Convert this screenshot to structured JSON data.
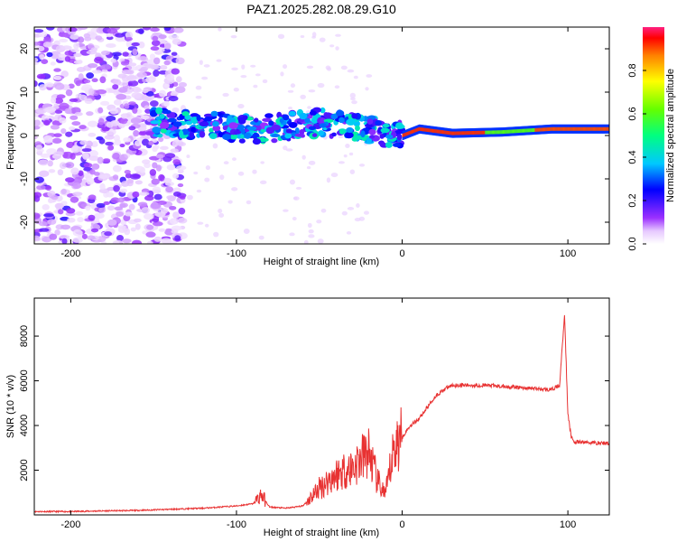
{
  "title": "PAZ1.2025.282.08.29.G10",
  "chart_data": [
    {
      "type": "heatmap",
      "xlabel": "Height of straight line (km)",
      "ylabel": "Frequency (Hz)",
      "xlim": [
        -222,
        125
      ],
      "ylim": [
        -25,
        25
      ],
      "xticks": [
        -200,
        -100,
        0,
        100
      ],
      "xtick_labels": [
        "-200",
        "-100",
        "0",
        "100"
      ],
      "yticks": [
        -20,
        -10,
        0,
        10,
        20
      ],
      "ytick_labels": [
        "-20",
        "-10",
        "0",
        "10",
        "20"
      ],
      "colorbar": {
        "label": "Normalized spectral amplitude",
        "range": [
          0,
          1
        ],
        "ticks": [
          0,
          0.2,
          0.4,
          0.6,
          0.8
        ],
        "tick_labels": [
          "0.0",
          "0.2",
          "0.4",
          "0.6",
          "0.8"
        ]
      },
      "ridge": [
        {
          "x": -150,
          "f": 3
        },
        {
          "x": -130,
          "f": 2.5
        },
        {
          "x": -110,
          "f": 2
        },
        {
          "x": -90,
          "f": 1.5
        },
        {
          "x": -70,
          "f": 2
        },
        {
          "x": -50,
          "f": 3
        },
        {
          "x": -30,
          "f": 2
        },
        {
          "x": -10,
          "f": 0.5
        },
        {
          "x": 0,
          "f": 0
        },
        {
          "x": 10,
          "f": 1.5
        },
        {
          "x": 30,
          "f": 0.5
        },
        {
          "x": 60,
          "f": 0.8
        },
        {
          "x": 90,
          "f": 1.5
        },
        {
          "x": 125,
          "f": 1.5
        }
      ]
    },
    {
      "type": "line",
      "xlabel": "Height of straight line (km)",
      "ylabel": "SNR (10 * v/v)",
      "xlim": [
        -222,
        125
      ],
      "ylim": [
        0,
        9700
      ],
      "xticks": [
        -200,
        -100,
        0,
        100
      ],
      "xtick_labels": [
        "-200",
        "-100",
        "0",
        "100"
      ],
      "yticks": [
        2000,
        4000,
        6000,
        8000
      ],
      "ytick_labels": [
        "2000",
        "4000",
        "6000",
        "8000"
      ],
      "color": "#e83232",
      "series": [
        {
          "x": [
            -222,
            -200,
            -180,
            -160,
            -140,
            -120,
            -110,
            -100,
            -90,
            -85,
            -80,
            -70,
            -60,
            -55,
            -50,
            -45,
            -40,
            -35,
            -30,
            -25,
            -20,
            -15,
            -10,
            -5,
            0,
            5,
            10,
            15,
            20,
            25,
            30,
            40,
            50,
            60,
            70,
            80,
            90,
            95,
            98,
            100,
            102,
            104,
            110,
            125
          ],
          "y": [
            150,
            150,
            180,
            200,
            250,
            300,
            350,
            400,
            500,
            900,
            350,
            300,
            400,
            800,
            1200,
            1500,
            1800,
            2000,
            2100,
            2500,
            2800,
            1500,
            900,
            3000,
            3500,
            4000,
            4300,
            4800,
            5300,
            5600,
            5800,
            5800,
            5800,
            5750,
            5700,
            5650,
            5600,
            5800,
            9000,
            4500,
            3500,
            3250,
            3250,
            3200
          ]
        }
      ]
    }
  ]
}
